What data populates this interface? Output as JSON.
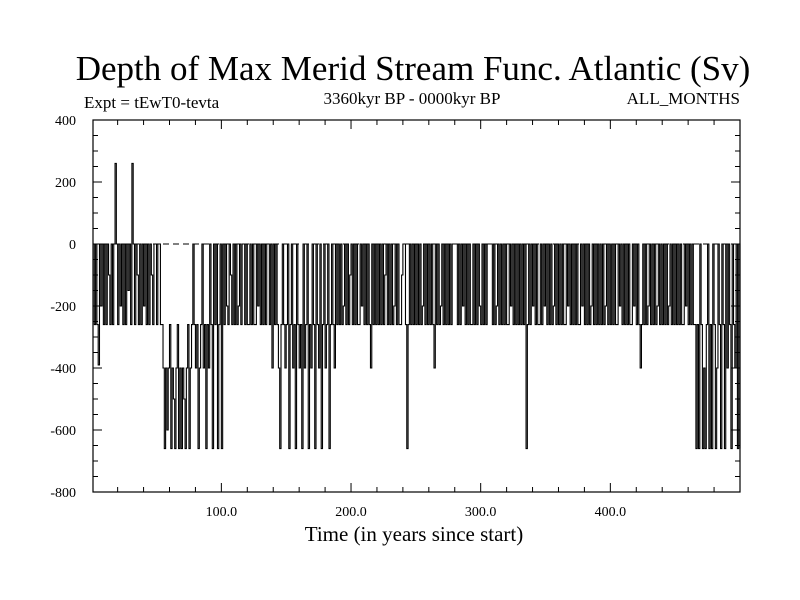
{
  "chart_data": {
    "type": "line",
    "title": "Depth of Max Merid Stream Func. Atlantic (Sv)",
    "left_label": "Expt = tEwT0-tevta",
    "center_label": "3360kyr BP - 0000kyr BP",
    "right_label": "ALL_MONTHS",
    "xlabel": "Time (in years since start)",
    "ylabel": "",
    "xlim": [
      1,
      500
    ],
    "ylim": [
      -800,
      400
    ],
    "x_ticks": [
      100,
      200,
      300,
      400
    ],
    "x_tick_labels": [
      "100.0",
      "200.0",
      "300.0",
      "400.0"
    ],
    "y_ticks": [
      400,
      200,
      0,
      -200,
      -400,
      -600,
      -800
    ],
    "y_tick_labels": [
      "400",
      "200",
      "0",
      "-200",
      "-400",
      "-600",
      "-800"
    ],
    "zero_line": "dashed",
    "grid": false,
    "legend": "none",
    "line_color": "#000000",
    "series": [
      {
        "x_start": 1,
        "x_step": 1,
        "values": [
          0,
          -260,
          0,
          -260,
          -390,
          0,
          -200,
          0,
          -260,
          0,
          -260,
          0,
          -100,
          -260,
          0,
          -260,
          0,
          260,
          0,
          -260,
          0,
          -200,
          0,
          -260,
          0,
          -260,
          0,
          -150,
          0,
          -260,
          260,
          0,
          -260,
          0,
          -100,
          -260,
          0,
          -260,
          0,
          -200,
          0,
          -260,
          0,
          -260,
          0,
          -100,
          -260,
          0,
          0,
          -260,
          0,
          0,
          -260,
          -260,
          -400,
          -660,
          -400,
          -600,
          -400,
          -260,
          -660,
          -400,
          -500,
          -660,
          -400,
          -260,
          -660,
          -400,
          -660,
          -400,
          -500,
          -660,
          -400,
          -260,
          -660,
          -400,
          -260,
          0,
          -260,
          -400,
          -260,
          -660,
          -400,
          -260,
          0,
          -400,
          -260,
          -660,
          -260,
          -400,
          0,
          -260,
          -660,
          0,
          -260,
          0,
          -660,
          -260,
          0,
          -660,
          0,
          -260,
          0,
          -200,
          -260,
          0,
          -100,
          -260,
          0,
          -260,
          0,
          -260,
          -200,
          0,
          -260,
          0,
          0,
          -260,
          0,
          -260,
          -260,
          0,
          -260,
          0,
          -260,
          -260,
          0,
          -200,
          0,
          -260,
          0,
          -260,
          0,
          -260,
          0,
          0,
          -260,
          0,
          -400,
          0,
          -260,
          0,
          -260,
          -400,
          -660,
          -260,
          0,
          -260,
          -400,
          -260,
          0,
          -660,
          -260,
          0,
          -400,
          -260,
          -660,
          0,
          -260,
          -400,
          -260,
          -660,
          0,
          -400,
          -260,
          0,
          -660,
          -260,
          -400,
          0,
          -260,
          -660,
          0,
          -260,
          -400,
          0,
          -660,
          -260,
          0,
          -400,
          -260,
          0,
          -660,
          -260,
          0,
          -260,
          -400,
          0,
          -260,
          0,
          -260,
          0,
          -260,
          -200,
          0,
          -260,
          0,
          -260,
          -100,
          0,
          -260,
          0,
          -260,
          0,
          -260,
          -260,
          0,
          -200,
          0,
          -260,
          0,
          -260,
          0,
          -260,
          -400,
          0,
          -260,
          0,
          -260,
          0,
          -260,
          0,
          -260,
          0,
          -260,
          -100,
          0,
          -260,
          0,
          -260,
          0,
          -260,
          -200,
          0,
          -260,
          0,
          -260,
          -260,
          -100,
          0,
          0,
          -260,
          -660,
          -260,
          0,
          -260,
          0,
          -260,
          0,
          -260,
          0,
          -260,
          0,
          -260,
          -200,
          0,
          -260,
          0,
          -260,
          0,
          -260,
          0,
          -260,
          -400,
          0,
          -260,
          0,
          -260,
          -200,
          0,
          -260,
          0,
          -260,
          0,
          -260,
          0,
          -260,
          0,
          0,
          0,
          0,
          -260,
          0,
          -260,
          0,
          -200,
          0,
          -260,
          0,
          -260,
          0,
          -260,
          -260,
          0,
          -260,
          0,
          -260,
          0,
          -200,
          -260,
          0,
          -260,
          0,
          -260,
          0,
          0,
          0,
          0,
          -260,
          0,
          -260,
          -200,
          0,
          -260,
          0,
          -260,
          0,
          -260,
          0,
          -260,
          -260,
          0,
          -200,
          0,
          -260,
          0,
          -260,
          0,
          -260,
          0,
          -260,
          0,
          -260,
          0,
          -660,
          -260,
          0,
          -260,
          0,
          -200,
          0,
          -260,
          0,
          -260,
          -260,
          0,
          -260,
          0,
          -200,
          0,
          -260,
          0,
          -260,
          0,
          -260,
          -200,
          0,
          -260,
          0,
          -260,
          0,
          -260,
          0,
          -260,
          -260,
          0,
          -200,
          0,
          -260,
          0,
          -260,
          0,
          -260,
          0,
          -260,
          -260,
          0,
          -200,
          0,
          -260,
          0,
          -260,
          0,
          -260,
          -200,
          0,
          -260,
          0,
          -260,
          0,
          -260,
          0,
          -260,
          0,
          -260,
          -200,
          0,
          -260,
          0,
          -260,
          0,
          -260,
          0,
          -260,
          -260,
          0,
          -200,
          0,
          -260,
          0,
          -260,
          0,
          -260,
          0,
          -260,
          -260,
          0,
          -200,
          0,
          -260,
          0,
          -260,
          -400,
          -260,
          0,
          -260,
          0,
          -260,
          -200,
          0,
          -260,
          0,
          -260,
          0,
          -260,
          -200,
          0,
          -260,
          0,
          -260,
          0,
          -260,
          0,
          -260,
          -200,
          0,
          -260,
          0,
          -260,
          0,
          -260,
          0,
          -260,
          0,
          -260,
          -260,
          0,
          -200,
          0,
          -260,
          0,
          -260,
          0,
          -260,
          -260,
          -660,
          -260,
          -660,
          0,
          -260,
          -660,
          -400,
          -660,
          -260,
          0,
          -660,
          -260,
          -660,
          0,
          -260,
          -660,
          -400,
          0,
          -260,
          -660,
          0,
          -260,
          -660,
          0,
          -400,
          0,
          -260,
          -660,
          0,
          -260,
          -400,
          0,
          -660,
          0,
          -660
        ]
      }
    ]
  }
}
